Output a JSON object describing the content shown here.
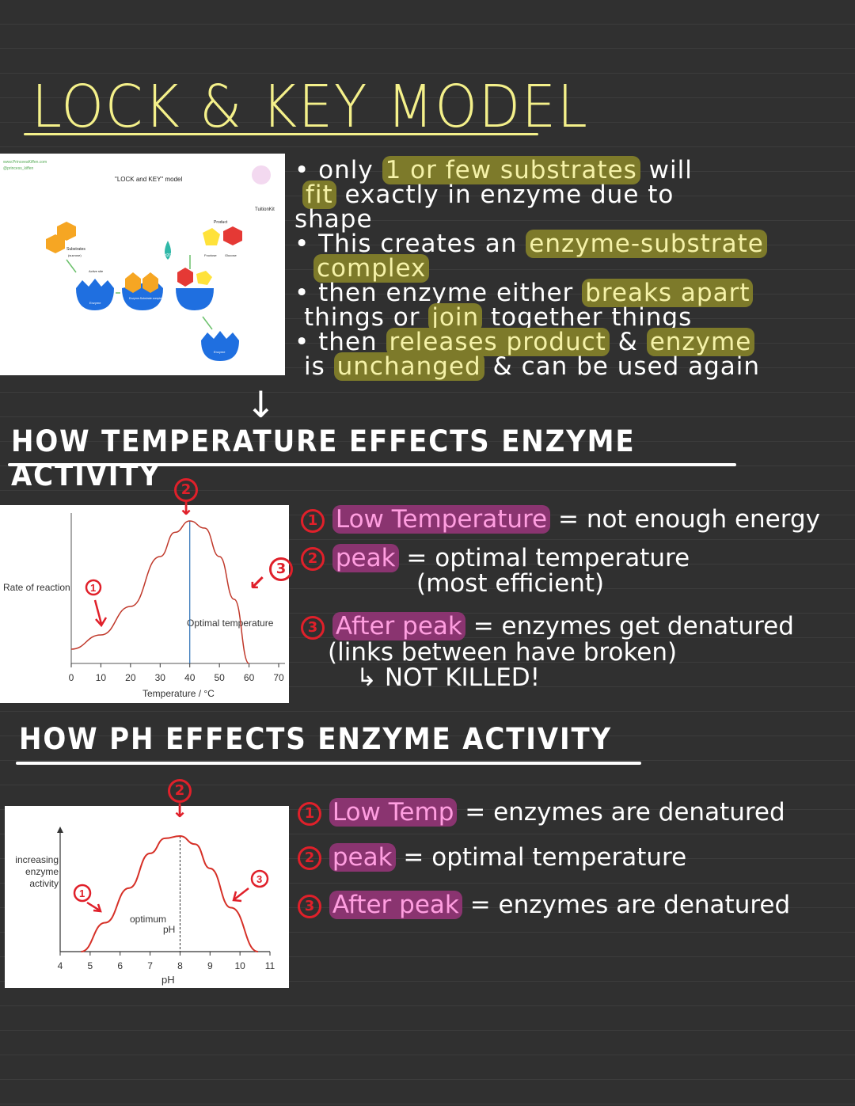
{
  "title": "LOCK & KEY MODEL",
  "lock_key_image": {
    "watermark1": "www.PrinceeaKiffen.com",
    "watermark2": "@princess_kiffen",
    "caption": "\"LOCK and KEY\" model",
    "logo_text": "TuitionKit",
    "substrates_label": "Substrates",
    "substrates_sub": "(sucrose)",
    "active_site_label": "Active site",
    "enzyme_label": "Enzyme",
    "complex_label": "Enzyme-Substrate complex",
    "water_label": "H2O",
    "product_label": "Product",
    "fructose_label": "Fructose",
    "glucose_label": "Glucose"
  },
  "lock_key_notes": {
    "line1_pre": "• only ",
    "line1_hl": "1 or few substrates",
    "line1_post": " will",
    "line2_hl": "fit",
    "line2_post": " exactly in enzyme due to",
    "line3": "shape",
    "line4_pre": "• This creates an ",
    "line4_hl": "enzyme-substrate",
    "line5_hl": "complex",
    "line6_pre": "• then enzyme either ",
    "line6_hl": "breaks apart",
    "line7_pre": "things or ",
    "line7_hl": "join",
    "line7_post": " together things",
    "line8_pre": "• then ",
    "line8_hl1": "releases product",
    "line8_mid": " & ",
    "line8_hl2": "enzyme",
    "line9_pre": "is ",
    "line9_hl": "unchanged",
    "line9_post": " & can be used again"
  },
  "temperature_section": {
    "heading": "HOW TEMPERATURE EFFECTS ENZYME ACTIVITY",
    "notes": {
      "n1_marker": "1",
      "n1_hl": "Low Temperature",
      "n1_post": " = not enough energy",
      "n2_marker": "2",
      "n2_hl": "peak",
      "n2_post": " = optimal temperature",
      "n2_line2": "(most efficient)",
      "n3_marker": "3",
      "n3_hl": "After peak",
      "n3_post": " = enzymes get denatured",
      "n3_line2": "(links between have broken)",
      "n3_line3": "↳ NOT KILLED!"
    }
  },
  "ph_section": {
    "heading": "HOW PH EFFECTS ENZYME ACTIVITY",
    "notes": {
      "n1_marker": "1",
      "n1_hl": "Low Temp",
      "n1_post": " = enzymes are denatured",
      "n2_marker": "2",
      "n2_hl": "peak",
      "n2_post": " = optimal temperature",
      "n3_marker": "3",
      "n3_hl": "After peak",
      "n3_post": " = enzymes are denatured"
    }
  },
  "chart_data": [
    {
      "type": "line",
      "ylabel": "Rate of reaction",
      "xlabel": "Temperature / °C",
      "x_ticks": [
        0,
        10,
        20,
        30,
        40,
        50,
        60,
        70
      ],
      "xlim": [
        0,
        70
      ],
      "x": [
        0,
        10,
        20,
        30,
        35,
        40,
        45,
        50,
        55,
        60
      ],
      "values": [
        0.1,
        0.2,
        0.4,
        0.75,
        0.92,
        1.0,
        0.95,
        0.75,
        0.45,
        0.0
      ],
      "annotation": "Optimal temperature",
      "optimum_x": 40,
      "markers": [
        "1",
        "2",
        "3"
      ]
    },
    {
      "type": "line",
      "ylabel": "increasing enzyme activity",
      "xlabel": "pH",
      "x_ticks": [
        4,
        5,
        6,
        7,
        8,
        9,
        10,
        11
      ],
      "xlim": [
        4,
        11
      ],
      "x": [
        4.7,
        5.5,
        6.3,
        7.0,
        7.5,
        8.0,
        8.5,
        9.0,
        9.7,
        10.6
      ],
      "values": [
        0.0,
        0.25,
        0.55,
        0.85,
        0.98,
        1.0,
        0.93,
        0.72,
        0.38,
        0.0
      ],
      "annotation": "optimum pH",
      "optimum_x": 8,
      "markers": [
        "1",
        "2",
        "3"
      ]
    }
  ]
}
